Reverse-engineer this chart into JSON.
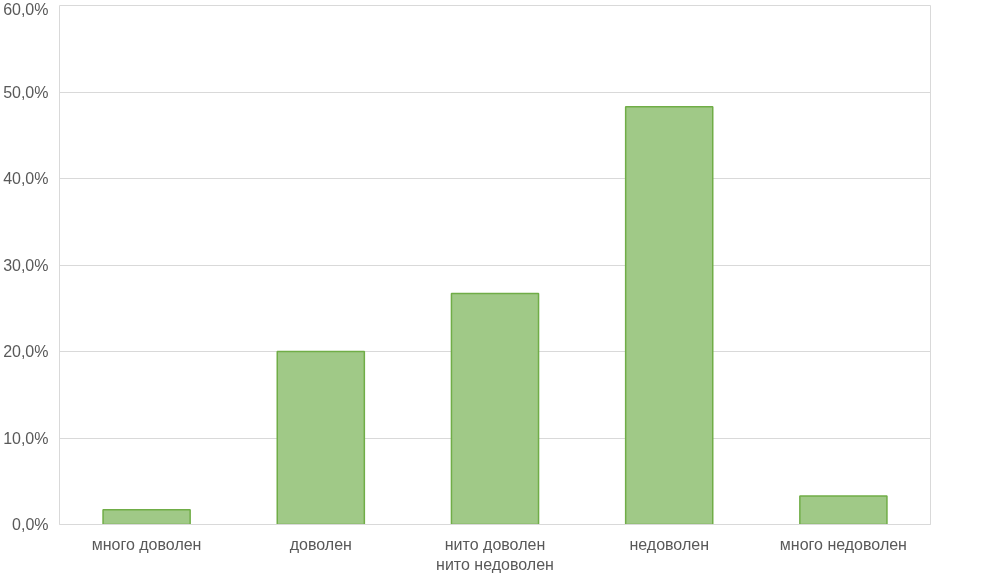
{
  "chart_data": {
    "type": "bar",
    "categories": [
      "много доволен",
      "доволен",
      "нито доволен нито недоволен",
      "недоволен",
      "много недоволен"
    ],
    "values": [
      1.7,
      20.0,
      26.7,
      48.3,
      3.3
    ],
    "color": "#a0c987",
    "ylim": [
      0,
      60
    ],
    "yticks": [
      {
        "value": 0,
        "label": "0,0%"
      },
      {
        "value": 10,
        "label": "10,0%"
      },
      {
        "value": 20,
        "label": "20,0%"
      },
      {
        "value": 30,
        "label": "30,0%"
      },
      {
        "value": 40,
        "label": "40,0%"
      },
      {
        "value": 50,
        "label": "50,0%"
      },
      {
        "value": 60,
        "label": "60,0%"
      }
    ],
    "grid": "y"
  }
}
